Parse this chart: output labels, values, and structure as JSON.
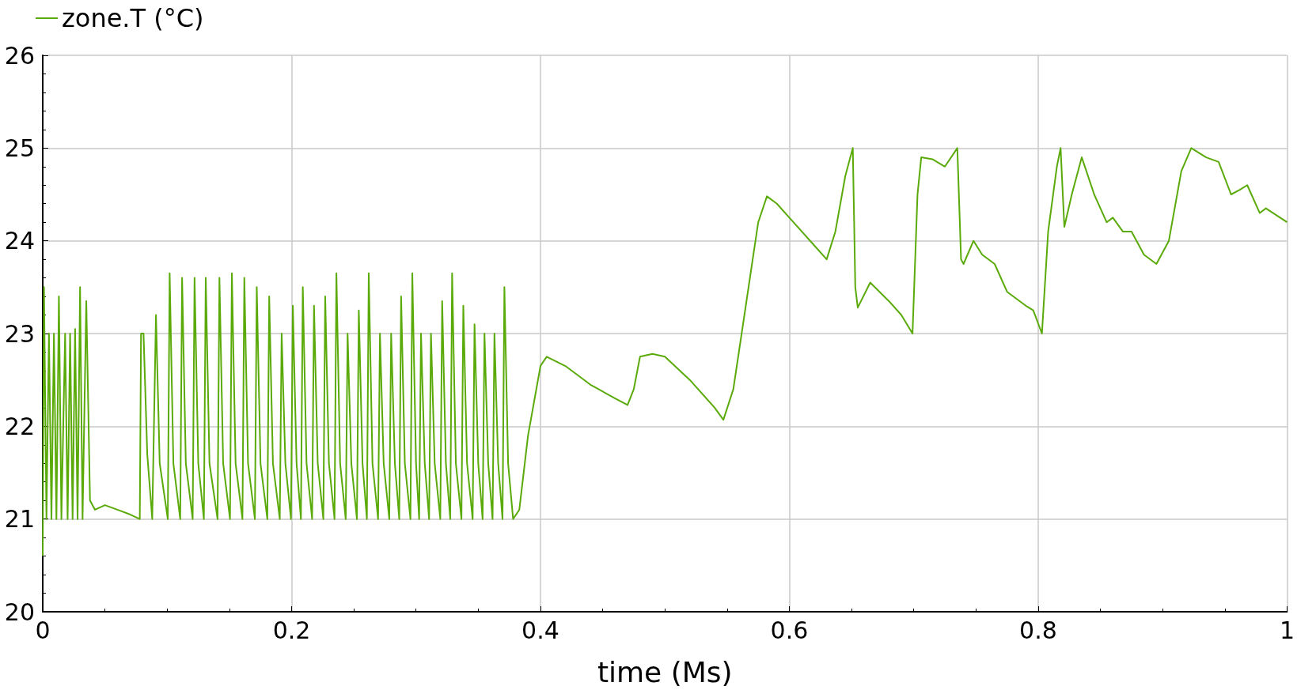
{
  "chart_data": {
    "type": "line",
    "xlabel": "time (Ms)",
    "xlim": [
      0,
      1
    ],
    "xticks": [
      0,
      0.2,
      0.4,
      0.6,
      0.8,
      1
    ],
    "ylim": [
      20,
      26
    ],
    "yticks": [
      20,
      21,
      22,
      23,
      24,
      25,
      26
    ],
    "grid": true,
    "legend": "top left",
    "marker": "none",
    "line_style": "solid",
    "series": [
      {
        "name": "zone.T (°C)",
        "color": "#5aaa0a",
        "x": [
          0,
          0.001,
          0.003,
          0.005,
          0.007,
          0.009,
          0.011,
          0.013,
          0.015,
          0.018,
          0.02,
          0.022,
          0.024,
          0.026,
          0.028,
          0.03,
          0.032,
          0.035,
          0.038,
          0.042,
          0.05,
          0.06,
          0.07,
          0.078,
          0.079,
          0.081,
          0.084,
          0.088,
          0.091,
          0.094,
          0.1005,
          0.102,
          0.105,
          0.1105,
          0.112,
          0.115,
          0.1205,
          0.122,
          0.125,
          0.1295,
          0.131,
          0.134,
          0.1405,
          0.142,
          0.145,
          0.1505,
          0.152,
          0.155,
          0.1605,
          0.162,
          0.165,
          0.1705,
          0.172,
          0.175,
          0.1805,
          0.182,
          0.185,
          0.1905,
          0.192,
          0.195,
          0.1995,
          0.201,
          0.204,
          0.2075,
          0.209,
          0.212,
          0.2165,
          0.218,
          0.221,
          0.2255,
          0.227,
          0.23,
          0.2345,
          0.236,
          0.239,
          0.2435,
          0.245,
          0.248,
          0.2525,
          0.254,
          0.257,
          0.2605,
          0.262,
          0.265,
          0.2695,
          0.271,
          0.274,
          0.2785,
          0.28,
          0.283,
          0.2865,
          0.288,
          0.291,
          0.2955,
          0.297,
          0.3,
          0.3025,
          0.304,
          0.307,
          0.3105,
          0.312,
          0.315,
          0.3195,
          0.321,
          0.324,
          0.3275,
          0.329,
          0.332,
          0.3365,
          0.338,
          0.341,
          0.3455,
          0.347,
          0.35,
          0.3535,
          0.355,
          0.358,
          0.3615,
          0.363,
          0.366,
          0.3695,
          0.371,
          0.374,
          0.378,
          0.383,
          0.39,
          0.4,
          0.405,
          0.42,
          0.44,
          0.46,
          0.47,
          0.475,
          0.48,
          0.49,
          0.5,
          0.52,
          0.54,
          0.547,
          0.555,
          0.565,
          0.575,
          0.582,
          0.59,
          0.6,
          0.62,
          0.63,
          0.637,
          0.645,
          0.651,
          0.653,
          0.655,
          0.665,
          0.68,
          0.69,
          0.699,
          0.703,
          0.706,
          0.715,
          0.725,
          0.735,
          0.738,
          0.74,
          0.748,
          0.755,
          0.765,
          0.775,
          0.79,
          0.796,
          0.803,
          0.808,
          0.815,
          0.818,
          0.821,
          0.827,
          0.835,
          0.845,
          0.855,
          0.86,
          0.868,
          0.875,
          0.885,
          0.895,
          0.905,
          0.915,
          0.923,
          0.935,
          0.945,
          0.955,
          0.962,
          0.968,
          0.978,
          0.983,
          1.0
        ],
        "values": [
          20.6,
          23.5,
          21.0,
          23.0,
          21.0,
          23.0,
          21.0,
          23.4,
          21.0,
          23.0,
          21.0,
          23.0,
          21.0,
          23.05,
          21.0,
          23.5,
          21.0,
          23.35,
          21.2,
          21.1,
          21.15,
          21.1,
          21.05,
          21.0,
          23.0,
          23.0,
          21.7,
          21.0,
          23.2,
          21.6,
          21.0,
          23.65,
          21.6,
          21.0,
          23.6,
          21.6,
          21.0,
          23.6,
          21.6,
          21.0,
          23.6,
          21.6,
          21.0,
          23.6,
          21.6,
          21.0,
          23.65,
          21.6,
          21.0,
          23.6,
          21.6,
          21.0,
          23.5,
          21.6,
          21.0,
          23.4,
          21.6,
          21.0,
          23.0,
          21.6,
          21.0,
          23.3,
          21.6,
          21.0,
          23.5,
          21.6,
          21.0,
          23.3,
          21.6,
          21.0,
          23.4,
          21.6,
          21.0,
          23.65,
          21.6,
          21.0,
          23.0,
          21.6,
          21.0,
          23.25,
          21.6,
          21.0,
          23.65,
          21.6,
          21.0,
          23.0,
          21.6,
          21.0,
          23.0,
          21.6,
          21.0,
          23.4,
          21.6,
          21.0,
          23.65,
          21.6,
          21.0,
          23.0,
          21.6,
          21.0,
          23.0,
          21.6,
          21.0,
          23.35,
          21.6,
          21.0,
          23.65,
          21.6,
          21.0,
          23.3,
          21.6,
          21.0,
          23.1,
          21.6,
          21.0,
          23.0,
          21.6,
          21.0,
          23.0,
          21.6,
          21.0,
          23.5,
          21.6,
          21.0,
          21.1,
          21.9,
          22.65,
          22.75,
          22.65,
          22.45,
          22.3,
          22.23,
          22.4,
          22.75,
          22.78,
          22.75,
          22.5,
          22.2,
          22.07,
          22.4,
          23.3,
          24.2,
          24.48,
          24.4,
          24.25,
          23.95,
          23.8,
          24.1,
          24.7,
          25.0,
          23.5,
          23.28,
          23.55,
          23.35,
          23.2,
          23.0,
          24.5,
          24.9,
          24.88,
          24.8,
          25.0,
          23.8,
          23.75,
          24.0,
          23.85,
          23.75,
          23.45,
          23.3,
          23.25,
          23.0,
          24.1,
          24.8,
          25.0,
          24.15,
          24.5,
          24.9,
          24.5,
          24.2,
          24.25,
          24.1,
          24.1,
          23.85,
          23.75,
          24.0,
          24.75,
          25.0,
          24.9,
          24.85,
          24.5,
          24.55,
          24.6,
          24.3,
          24.35,
          24.2
        ]
      }
    ]
  }
}
